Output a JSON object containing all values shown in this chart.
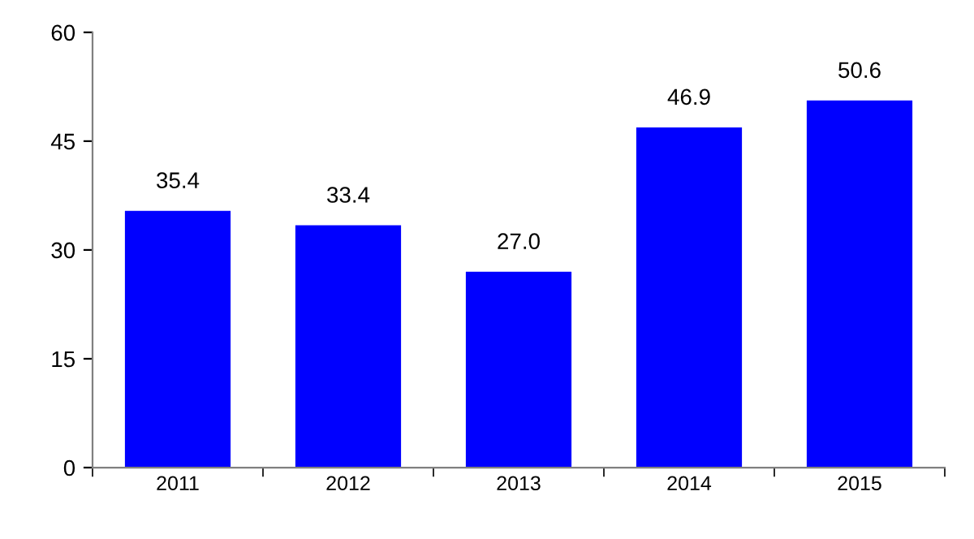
{
  "chart_data": {
    "type": "bar",
    "categories": [
      "2011",
      "2012",
      "2013",
      "2014",
      "2015"
    ],
    "values": [
      35.4,
      33.4,
      27.0,
      46.9,
      50.6
    ],
    "color": "#0000ff",
    "ylim": [
      0,
      60
    ],
    "yticks": [
      0,
      15,
      30,
      45,
      60
    ],
    "grid": false,
    "value_labels": [
      "35.4",
      "33.4",
      "27.0",
      "46.9",
      "50.6"
    ]
  }
}
